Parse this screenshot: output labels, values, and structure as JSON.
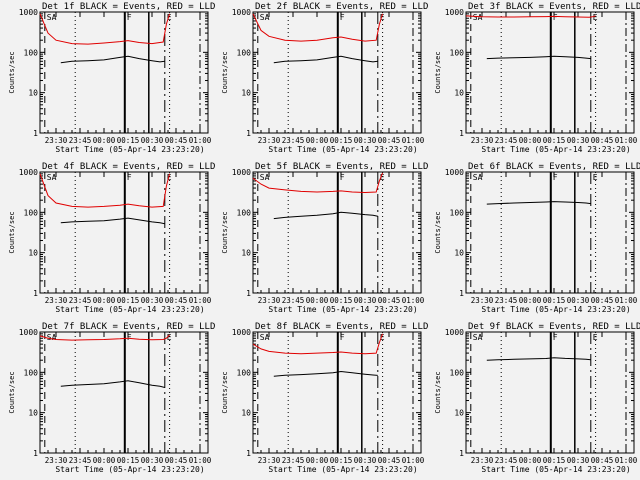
{
  "figure": {
    "background": "#f2f2f2",
    "event_color": "#000000",
    "lld_color": "#e00000"
  },
  "chart_data": [
    {
      "type": "line",
      "title": "Det 1f  BLACK = Events, RED = LLD",
      "xlabel": "Start Time (05-Apr-14 23:23:20)",
      "ylabel": "Counts/sec",
      "y_scale": "log",
      "ylim": [
        1,
        1000
      ],
      "y_ticks": [
        1,
        10,
        100,
        1000
      ],
      "y_tick_labels": [
        "1",
        "10",
        "100",
        "1000"
      ],
      "xlim": [
        "23:20",
        "01:05"
      ],
      "x_tick_labels": [
        "23:30",
        "23:45",
        "00:00",
        "00:15",
        "00:30",
        "00:45",
        "01:00"
      ],
      "flags": [
        "SA",
        "F",
        "E"
      ],
      "series": [
        {
          "key": "events",
          "color": "#000000",
          "x": [
            "23:33",
            "23:40",
            "23:50",
            "00:00",
            "00:10",
            "00:15",
            "00:22",
            "00:30",
            "00:35",
            "00:38"
          ],
          "values": [
            55,
            60,
            62,
            65,
            75,
            80,
            70,
            62,
            58,
            60
          ]
        },
        {
          "key": "lld",
          "color": "#e00000",
          "x": [
            "23:20",
            "23:25",
            "23:30",
            "23:40",
            "23:50",
            "00:00",
            "00:10",
            "00:15",
            "00:22",
            "00:30",
            "00:37",
            "00:39",
            "00:41"
          ],
          "values": [
            900,
            300,
            200,
            165,
            160,
            170,
            185,
            195,
            175,
            165,
            180,
            500,
            900
          ]
        }
      ]
    },
    {
      "type": "line",
      "title": "Det 2f  BLACK = Events, RED = LLD",
      "xlabel": "Start Time (05-Apr-14 23:23:20)",
      "ylabel": "Counts/sec",
      "y_scale": "log",
      "ylim": [
        1,
        1000
      ],
      "y_ticks": [
        1,
        10,
        100,
        1000
      ],
      "y_tick_labels": [
        "1",
        "10",
        "100",
        "1000"
      ],
      "xlim": [
        "23:20",
        "01:05"
      ],
      "x_tick_labels": [
        "23:30",
        "23:45",
        "00:00",
        "00:15",
        "00:30",
        "00:45",
        "01:00"
      ],
      "flags": [
        "SA",
        "F",
        "E"
      ],
      "series": [
        {
          "key": "events",
          "color": "#000000",
          "x": [
            "23:33",
            "23:40",
            "23:50",
            "00:00",
            "00:10",
            "00:15",
            "00:22",
            "00:30",
            "00:35",
            "00:38"
          ],
          "values": [
            55,
            60,
            62,
            65,
            75,
            80,
            70,
            62,
            58,
            60
          ]
        },
        {
          "key": "lld",
          "color": "#e00000",
          "x": [
            "23:20",
            "23:25",
            "23:30",
            "23:40",
            "23:50",
            "00:00",
            "00:10",
            "00:15",
            "00:22",
            "00:30",
            "00:37",
            "00:39",
            "00:41"
          ],
          "values": [
            900,
            350,
            250,
            200,
            190,
            200,
            230,
            240,
            210,
            190,
            200,
            500,
            900
          ]
        }
      ]
    },
    {
      "type": "line",
      "title": "Det 3f  BLACK = Events, RED = LLD",
      "xlabel": "Start Time (05-Apr-14 23:23:20)",
      "ylabel": "Counts/sec",
      "y_scale": "log",
      "ylim": [
        1,
        1000
      ],
      "y_ticks": [
        1,
        10,
        100,
        1000
      ],
      "y_tick_labels": [
        "1",
        "10",
        "100",
        "1000"
      ],
      "xlim": [
        "23:20",
        "01:05"
      ],
      "x_tick_labels": [
        "23:30",
        "23:45",
        "00:00",
        "00:15",
        "00:30",
        "00:45",
        "01:00"
      ],
      "flags": [
        "SA",
        "F",
        "E"
      ],
      "series": [
        {
          "key": "events",
          "color": "#000000",
          "x": [
            "23:33",
            "23:40",
            "23:50",
            "00:00",
            "00:10",
            "00:15",
            "00:22",
            "00:30",
            "00:35",
            "00:38"
          ],
          "values": [
            70,
            72,
            73,
            75,
            78,
            80,
            78,
            75,
            72,
            70
          ]
        },
        {
          "key": "lld",
          "color": "#e00000",
          "x": [
            "23:20",
            "23:25",
            "23:30",
            "23:40",
            "23:50",
            "00:00",
            "00:10",
            "00:15",
            "00:22",
            "00:30",
            "00:37",
            "00:39",
            "00:41"
          ],
          "values": [
            800,
            780,
            760,
            750,
            750,
            760,
            770,
            780,
            760,
            750,
            740,
            760,
            800
          ]
        }
      ]
    },
    {
      "type": "line",
      "title": "Det 4f  BLACK = Events, RED = LLD",
      "xlabel": "Start Time (05-Apr-14 23:23:20)",
      "ylabel": "Counts/sec",
      "y_scale": "log",
      "ylim": [
        1,
        1000
      ],
      "y_ticks": [
        1,
        10,
        100,
        1000
      ],
      "y_tick_labels": [
        "1",
        "10",
        "100",
        "1000"
      ],
      "xlim": [
        "23:20",
        "01:05"
      ],
      "x_tick_labels": [
        "23:30",
        "23:45",
        "00:00",
        "00:15",
        "00:30",
        "00:45",
        "01:00"
      ],
      "flags": [
        "SA",
        "F",
        "E"
      ],
      "series": [
        {
          "key": "events",
          "color": "#000000",
          "x": [
            "23:33",
            "23:40",
            "23:50",
            "00:00",
            "00:10",
            "00:15",
            "00:22",
            "00:30",
            "00:35",
            "00:38"
          ],
          "values": [
            55,
            58,
            60,
            62,
            68,
            72,
            65,
            58,
            55,
            52
          ]
        },
        {
          "key": "lld",
          "color": "#e00000",
          "x": [
            "23:20",
            "23:25",
            "23:30",
            "23:40",
            "23:50",
            "00:00",
            "00:10",
            "00:15",
            "00:22",
            "00:30",
            "00:37",
            "00:39",
            "00:41"
          ],
          "values": [
            900,
            260,
            170,
            140,
            135,
            140,
            150,
            160,
            145,
            135,
            140,
            450,
            900
          ]
        }
      ]
    },
    {
      "type": "line",
      "title": "Det 5f  BLACK = Events, RED = LLD",
      "xlabel": "Start Time (05-Apr-14 23:23:20)",
      "ylabel": "Counts/sec",
      "y_scale": "log",
      "ylim": [
        1,
        1000
      ],
      "y_ticks": [
        1,
        10,
        100,
        1000
      ],
      "y_tick_labels": [
        "1",
        "10",
        "100",
        "1000"
      ],
      "xlim": [
        "23:20",
        "01:05"
      ],
      "x_tick_labels": [
        "23:30",
        "23:45",
        "00:00",
        "00:15",
        "00:30",
        "00:45",
        "01:00"
      ],
      "flags": [
        "SA",
        "F",
        "E"
      ],
      "series": [
        {
          "key": "events",
          "color": "#000000",
          "x": [
            "23:33",
            "23:40",
            "23:50",
            "00:00",
            "00:10",
            "00:15",
            "00:22",
            "00:30",
            "00:35",
            "00:38"
          ],
          "values": [
            70,
            75,
            80,
            85,
            92,
            100,
            95,
            88,
            85,
            80
          ]
        },
        {
          "key": "lld",
          "color": "#e00000",
          "x": [
            "23:20",
            "23:25",
            "23:30",
            "23:40",
            "23:50",
            "00:00",
            "00:10",
            "00:15",
            "00:22",
            "00:30",
            "00:37",
            "00:39",
            "00:41"
          ],
          "values": [
            700,
            500,
            400,
            360,
            330,
            320,
            330,
            340,
            320,
            310,
            320,
            600,
            950
          ]
        }
      ]
    },
    {
      "type": "line",
      "title": "Det 6f  BLACK = Events, RED = LLD",
      "xlabel": "Start Time (05-Apr-14 23:23:20)",
      "ylabel": "Counts/sec",
      "y_scale": "log",
      "ylim": [
        1,
        1000
      ],
      "y_ticks": [
        1,
        10,
        100,
        1000
      ],
      "y_tick_labels": [
        "1",
        "10",
        "100",
        "1000"
      ],
      "xlim": [
        "23:20",
        "01:05"
      ],
      "x_tick_labels": [
        "23:30",
        "23:45",
        "00:00",
        "00:15",
        "00:30",
        "00:45",
        "01:00"
      ],
      "flags": [
        "SA",
        "F",
        "E"
      ],
      "series": [
        {
          "key": "events",
          "color": "#000000",
          "x": [
            "23:33",
            "23:40",
            "23:50",
            "00:00",
            "00:10",
            "00:15",
            "00:22",
            "00:30",
            "00:35",
            "00:38"
          ],
          "values": [
            160,
            165,
            170,
            175,
            180,
            185,
            180,
            175,
            170,
            165
          ]
        }
      ]
    },
    {
      "type": "line",
      "title": "Det 7f  BLACK = Events, RED = LLD",
      "xlabel": "Start Time (05-Apr-14 23:23:20)",
      "ylabel": "Counts/sec",
      "y_scale": "log",
      "ylim": [
        1,
        1000
      ],
      "y_ticks": [
        1,
        10,
        100,
        1000
      ],
      "y_tick_labels": [
        "1",
        "10",
        "100",
        "1000"
      ],
      "xlim": [
        "23:20",
        "01:05"
      ],
      "x_tick_labels": [
        "23:30",
        "23:45",
        "00:00",
        "00:15",
        "00:30",
        "00:45",
        "01:00"
      ],
      "flags": [
        "SA",
        "F",
        "E"
      ],
      "series": [
        {
          "key": "events",
          "color": "#000000",
          "x": [
            "23:33",
            "23:40",
            "23:50",
            "00:00",
            "00:10",
            "00:15",
            "00:22",
            "00:30",
            "00:35",
            "00:38"
          ],
          "values": [
            45,
            48,
            50,
            52,
            58,
            62,
            55,
            48,
            45,
            42
          ]
        },
        {
          "key": "lld",
          "color": "#e00000",
          "x": [
            "23:20",
            "23:25",
            "23:30",
            "23:40",
            "23:50",
            "00:00",
            "00:10",
            "00:15",
            "00:22",
            "00:30",
            "00:37",
            "00:39",
            "00:41"
          ],
          "values": [
            800,
            700,
            650,
            630,
            640,
            650,
            680,
            700,
            660,
            640,
            650,
            700,
            850
          ]
        }
      ]
    },
    {
      "type": "line",
      "title": "Det 8f  BLACK = Events, RED = LLD",
      "xlabel": "Start Time (05-Apr-14 23:23:20)",
      "ylabel": "Counts/sec",
      "y_scale": "log",
      "ylim": [
        1,
        1000
      ],
      "y_ticks": [
        1,
        10,
        100,
        1000
      ],
      "y_tick_labels": [
        "1",
        "10",
        "100",
        "1000"
      ],
      "xlim": [
        "23:20",
        "01:05"
      ],
      "x_tick_labels": [
        "23:30",
        "23:45",
        "00:00",
        "00:15",
        "00:30",
        "00:45",
        "01:00"
      ],
      "flags": [
        "SA",
        "F",
        "E"
      ],
      "series": [
        {
          "key": "events",
          "color": "#000000",
          "x": [
            "23:33",
            "23:40",
            "23:50",
            "00:00",
            "00:10",
            "00:15",
            "00:22",
            "00:30",
            "00:35",
            "00:38"
          ],
          "values": [
            80,
            85,
            88,
            92,
            98,
            105,
            98,
            90,
            86,
            84
          ]
        },
        {
          "key": "lld",
          "color": "#e00000",
          "x": [
            "23:20",
            "23:25",
            "23:30",
            "23:40",
            "23:50",
            "00:00",
            "00:10",
            "00:15",
            "00:22",
            "00:30",
            "00:37",
            "00:39",
            "00:41"
          ],
          "values": [
            500,
            380,
            330,
            300,
            290,
            300,
            310,
            320,
            300,
            290,
            300,
            550,
            900
          ]
        }
      ]
    },
    {
      "type": "line",
      "title": "Det 9f  BLACK = Events, RED = LLD",
      "xlabel": "Start Time (05-Apr-14 23:23:20)",
      "ylabel": "Counts/sec",
      "y_scale": "log",
      "ylim": [
        1,
        1000
      ],
      "y_ticks": [
        1,
        10,
        100,
        1000
      ],
      "y_tick_labels": [
        "1",
        "10",
        "100",
        "1000"
      ],
      "xlim": [
        "23:20",
        "01:05"
      ],
      "x_tick_labels": [
        "23:30",
        "23:45",
        "00:00",
        "00:15",
        "00:30",
        "00:45",
        "01:00"
      ],
      "flags": [
        "SA",
        "F",
        "E"
      ],
      "series": [
        {
          "key": "events",
          "color": "#000000",
          "x": [
            "23:33",
            "23:40",
            "23:50",
            "00:00",
            "00:10",
            "00:15",
            "00:22",
            "00:30",
            "00:35",
            "00:38"
          ],
          "values": [
            200,
            205,
            210,
            215,
            220,
            230,
            222,
            215,
            210,
            205
          ]
        }
      ]
    }
  ]
}
